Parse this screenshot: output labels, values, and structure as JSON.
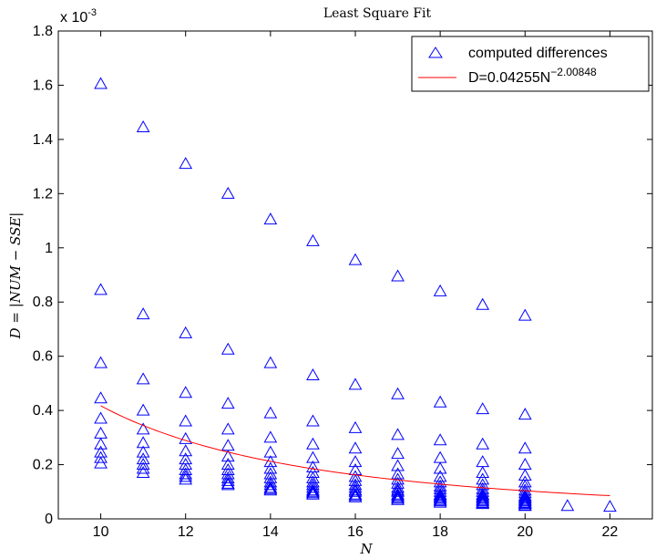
{
  "chart_data": {
    "type": "scatter",
    "title": "Least Square Fit",
    "xlabel": "N",
    "ylabel": "D = |NUM − SSE|",
    "y_exponent_label": "x 10",
    "y_exponent_power": "-3",
    "xlim": [
      9,
      23
    ],
    "ylim": [
      0,
      1.8
    ],
    "x_ticks": [
      10,
      12,
      14,
      16,
      18,
      20,
      22
    ],
    "y_ticks": [
      0,
      0.2,
      0.4,
      0.6,
      0.8,
      1,
      1.2,
      1.4,
      1.6,
      1.8
    ],
    "x_tick_labels": [
      "10",
      "12",
      "14",
      "16",
      "18",
      "20",
      "22"
    ],
    "y_tick_labels": [
      "0",
      "0.2",
      "0.4",
      "0.6",
      "0.8",
      "1",
      "1.2",
      "1.4",
      "1.6",
      "1.8"
    ],
    "grid": false,
    "legend_position": "top-right",
    "legend": [
      {
        "label": "computed differences",
        "marker": "triangle",
        "color": "#0000ff"
      },
      {
        "label": "D=0.04255N",
        "superscript": "−2.00848",
        "color": "#ff0000"
      }
    ],
    "series": [
      {
        "name": "computed differences",
        "marker": "triangle",
        "color": "#0000ff",
        "points": [
          [
            10,
            1.605
          ],
          [
            10,
            0.845
          ],
          [
            10,
            0.575
          ],
          [
            10,
            0.445
          ],
          [
            10,
            0.37
          ],
          [
            10,
            0.315
          ],
          [
            10,
            0.275
          ],
          [
            10,
            0.245
          ],
          [
            10,
            0.225
          ],
          [
            10,
            0.205
          ],
          [
            11,
            1.445
          ],
          [
            11,
            0.755
          ],
          [
            11,
            0.515
          ],
          [
            11,
            0.4
          ],
          [
            11,
            0.33
          ],
          [
            11,
            0.28
          ],
          [
            11,
            0.245
          ],
          [
            11,
            0.22
          ],
          [
            11,
            0.2
          ],
          [
            11,
            0.185
          ],
          [
            11,
            0.17
          ],
          [
            12,
            1.31
          ],
          [
            12,
            0.685
          ],
          [
            12,
            0.465
          ],
          [
            12,
            0.36
          ],
          [
            12,
            0.295
          ],
          [
            12,
            0.25
          ],
          [
            12,
            0.22
          ],
          [
            12,
            0.2
          ],
          [
            12,
            0.18
          ],
          [
            12,
            0.165
          ],
          [
            12,
            0.155
          ],
          [
            12,
            0.145
          ],
          [
            13,
            1.2
          ],
          [
            13,
            0.625
          ],
          [
            13,
            0.425
          ],
          [
            13,
            0.33
          ],
          [
            13,
            0.27
          ],
          [
            13,
            0.23
          ],
          [
            13,
            0.2
          ],
          [
            13,
            0.18
          ],
          [
            13,
            0.165
          ],
          [
            13,
            0.15
          ],
          [
            13,
            0.14
          ],
          [
            13,
            0.13
          ],
          [
            13,
            0.125
          ],
          [
            14,
            1.105
          ],
          [
            14,
            0.575
          ],
          [
            14,
            0.39
          ],
          [
            14,
            0.3
          ],
          [
            14,
            0.245
          ],
          [
            14,
            0.21
          ],
          [
            14,
            0.185
          ],
          [
            14,
            0.165
          ],
          [
            14,
            0.15
          ],
          [
            14,
            0.135
          ],
          [
            14,
            0.125
          ],
          [
            14,
            0.115
          ],
          [
            14,
            0.11
          ],
          [
            14,
            0.105
          ],
          [
            15,
            1.025
          ],
          [
            15,
            0.53
          ],
          [
            15,
            0.36
          ],
          [
            15,
            0.275
          ],
          [
            15,
            0.225
          ],
          [
            15,
            0.19
          ],
          [
            15,
            0.17
          ],
          [
            15,
            0.15
          ],
          [
            15,
            0.135
          ],
          [
            15,
            0.125
          ],
          [
            15,
            0.115
          ],
          [
            15,
            0.105
          ],
          [
            15,
            0.1
          ],
          [
            15,
            0.095
          ],
          [
            15,
            0.09
          ],
          [
            16,
            0.955
          ],
          [
            16,
            0.495
          ],
          [
            16,
            0.335
          ],
          [
            16,
            0.26
          ],
          [
            16,
            0.21
          ],
          [
            16,
            0.18
          ],
          [
            16,
            0.155
          ],
          [
            16,
            0.14
          ],
          [
            16,
            0.125
          ],
          [
            16,
            0.115
          ],
          [
            16,
            0.105
          ],
          [
            16,
            0.1
          ],
          [
            16,
            0.09
          ],
          [
            16,
            0.085
          ],
          [
            16,
            0.08
          ],
          [
            17,
            0.895
          ],
          [
            17,
            0.46
          ],
          [
            17,
            0.31
          ],
          [
            17,
            0.24
          ],
          [
            17,
            0.195
          ],
          [
            17,
            0.165
          ],
          [
            17,
            0.145
          ],
          [
            17,
            0.13
          ],
          [
            17,
            0.115
          ],
          [
            17,
            0.105
          ],
          [
            17,
            0.1
          ],
          [
            17,
            0.09
          ],
          [
            17,
            0.085
          ],
          [
            17,
            0.08
          ],
          [
            17,
            0.075
          ],
          [
            17,
            0.07
          ],
          [
            18,
            0.84
          ],
          [
            18,
            0.43
          ],
          [
            18,
            0.29
          ],
          [
            18,
            0.225
          ],
          [
            18,
            0.185
          ],
          [
            18,
            0.155
          ],
          [
            18,
            0.135
          ],
          [
            18,
            0.12
          ],
          [
            18,
            0.11
          ],
          [
            18,
            0.1
          ],
          [
            18,
            0.09
          ],
          [
            18,
            0.085
          ],
          [
            18,
            0.08
          ],
          [
            18,
            0.075
          ],
          [
            18,
            0.07
          ],
          [
            18,
            0.065
          ],
          [
            18,
            0.06
          ],
          [
            19,
            0.79
          ],
          [
            19,
            0.405
          ],
          [
            19,
            0.275
          ],
          [
            19,
            0.21
          ],
          [
            19,
            0.17
          ],
          [
            19,
            0.145
          ],
          [
            19,
            0.125
          ],
          [
            19,
            0.11
          ],
          [
            19,
            0.1
          ],
          [
            19,
            0.09
          ],
          [
            19,
            0.085
          ],
          [
            19,
            0.08
          ],
          [
            19,
            0.075
          ],
          [
            19,
            0.07
          ],
          [
            19,
            0.065
          ],
          [
            19,
            0.06
          ],
          [
            19,
            0.058
          ],
          [
            19,
            0.055
          ],
          [
            20,
            0.75
          ],
          [
            20,
            0.385
          ],
          [
            20,
            0.26
          ],
          [
            20,
            0.2
          ],
          [
            20,
            0.16
          ],
          [
            20,
            0.135
          ],
          [
            20,
            0.12
          ],
          [
            20,
            0.105
          ],
          [
            20,
            0.095
          ],
          [
            20,
            0.085
          ],
          [
            20,
            0.08
          ],
          [
            20,
            0.075
          ],
          [
            20,
            0.07
          ],
          [
            20,
            0.065
          ],
          [
            20,
            0.06
          ],
          [
            20,
            0.058
          ],
          [
            20,
            0.055
          ],
          [
            20,
            0.05
          ],
          [
            20,
            0.048
          ],
          [
            21,
            0.048
          ],
          [
            22,
            0.045
          ]
        ]
      },
      {
        "name": "D=0.04255N−2.00848",
        "type": "line",
        "color": "#ff0000",
        "function": {
          "a": 0.04255,
          "b": -2.00848,
          "scale": 1000
        },
        "x_range": [
          10,
          22
        ]
      }
    ]
  }
}
